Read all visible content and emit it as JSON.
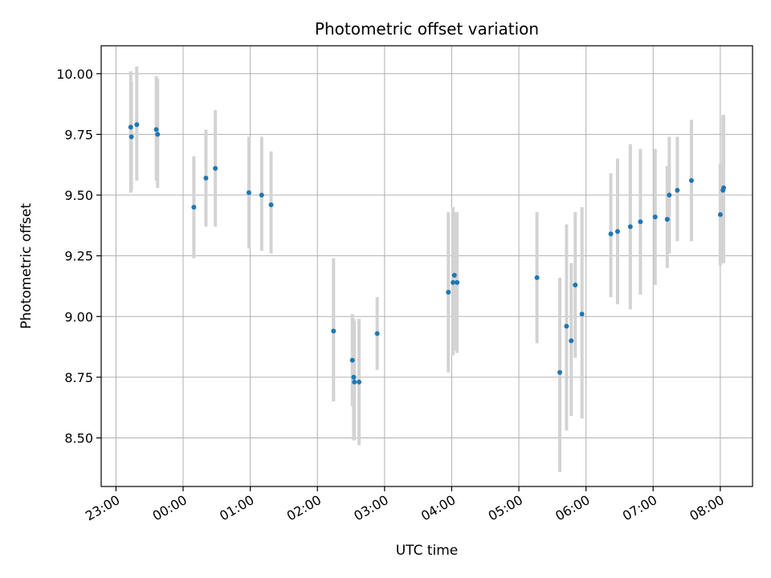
{
  "chart_data": {
    "type": "scatter",
    "title": "Photometric offset variation",
    "xlabel": "UTC time",
    "ylabel": "Photometric offset",
    "x_unit": "UTC time (hours; values past 24 are the next day)",
    "xlim": [
      22.78,
      32.48
    ],
    "ylim": [
      8.3,
      10.115
    ],
    "grid": true,
    "legend": "none",
    "x_ticks": [
      {
        "value": 23,
        "label": "23:00"
      },
      {
        "value": 24,
        "label": "00:00"
      },
      {
        "value": 25,
        "label": "01:00"
      },
      {
        "value": 26,
        "label": "02:00"
      },
      {
        "value": 27,
        "label": "03:00"
      },
      {
        "value": 28,
        "label": "04:00"
      },
      {
        "value": 29,
        "label": "05:00"
      },
      {
        "value": 30,
        "label": "06:00"
      },
      {
        "value": 31,
        "label": "07:00"
      },
      {
        "value": 32,
        "label": "08:00"
      }
    ],
    "y_ticks": [
      {
        "value": 8.5,
        "label": "8.50"
      },
      {
        "value": 8.75,
        "label": "8.75"
      },
      {
        "value": 9.0,
        "label": "9.00"
      },
      {
        "value": 9.25,
        "label": "9.25"
      },
      {
        "value": 9.5,
        "label": "9.50"
      },
      {
        "value": 9.75,
        "label": "9.75"
      },
      {
        "value": 10.0,
        "label": "10.00"
      }
    ],
    "colors": {
      "marker": "#1f77b4",
      "errorbar": "#d3d3d3",
      "grid": "#b0b0b0"
    },
    "points": [
      {
        "x": 23.22,
        "y": 9.78,
        "err_low": 9.51,
        "err_high": 10.01
      },
      {
        "x": 23.23,
        "y": 9.74,
        "err_low": 9.52,
        "err_high": 9.97
      },
      {
        "x": 23.31,
        "y": 9.79,
        "err_low": 9.56,
        "err_high": 10.03
      },
      {
        "x": 23.6,
        "y": 9.77,
        "err_low": 9.56,
        "err_high": 9.99
      },
      {
        "x": 23.62,
        "y": 9.75,
        "err_low": 9.53,
        "err_high": 9.98
      },
      {
        "x": 24.16,
        "y": 9.45,
        "err_low": 9.24,
        "err_high": 9.66
      },
      {
        "x": 24.34,
        "y": 9.57,
        "err_low": 9.37,
        "err_high": 9.77
      },
      {
        "x": 24.48,
        "y": 9.61,
        "err_low": 9.37,
        "err_high": 9.85
      },
      {
        "x": 24.98,
        "y": 9.51,
        "err_low": 9.28,
        "err_high": 9.74
      },
      {
        "x": 25.17,
        "y": 9.5,
        "err_low": 9.27,
        "err_high": 9.74
      },
      {
        "x": 25.31,
        "y": 9.46,
        "err_low": 9.26,
        "err_high": 9.68
      },
      {
        "x": 26.24,
        "y": 8.94,
        "err_low": 8.65,
        "err_high": 9.24
      },
      {
        "x": 26.52,
        "y": 8.82,
        "err_low": 8.63,
        "err_high": 9.01
      },
      {
        "x": 26.54,
        "y": 8.75,
        "err_low": 8.49,
        "err_high": 8.99
      },
      {
        "x": 26.55,
        "y": 8.73,
        "err_low": 8.49,
        "err_high": 8.98
      },
      {
        "x": 26.62,
        "y": 8.73,
        "err_low": 8.47,
        "err_high": 8.99
      },
      {
        "x": 26.89,
        "y": 8.93,
        "err_low": 8.78,
        "err_high": 9.08
      },
      {
        "x": 27.95,
        "y": 9.1,
        "err_low": 8.77,
        "err_high": 9.43
      },
      {
        "x": 28.02,
        "y": 9.14,
        "err_low": 8.84,
        "err_high": 9.45
      },
      {
        "x": 28.04,
        "y": 9.17,
        "err_low": 8.86,
        "err_high": 9.43
      },
      {
        "x": 28.08,
        "y": 9.14,
        "err_low": 8.85,
        "err_high": 9.43
      },
      {
        "x": 29.27,
        "y": 9.16,
        "err_low": 8.89,
        "err_high": 9.43
      },
      {
        "x": 29.61,
        "y": 8.77,
        "err_low": 8.36,
        "err_high": 9.16
      },
      {
        "x": 29.71,
        "y": 8.96,
        "err_low": 8.53,
        "err_high": 9.38
      },
      {
        "x": 29.78,
        "y": 8.9,
        "err_low": 8.59,
        "err_high": 9.22
      },
      {
        "x": 29.84,
        "y": 9.13,
        "err_low": 8.83,
        "err_high": 9.43
      },
      {
        "x": 29.94,
        "y": 9.01,
        "err_low": 8.58,
        "err_high": 9.45
      },
      {
        "x": 30.37,
        "y": 9.34,
        "err_low": 9.08,
        "err_high": 9.59
      },
      {
        "x": 30.47,
        "y": 9.35,
        "err_low": 9.05,
        "err_high": 9.65
      },
      {
        "x": 30.66,
        "y": 9.37,
        "err_low": 9.03,
        "err_high": 9.71
      },
      {
        "x": 30.81,
        "y": 9.39,
        "err_low": 9.09,
        "err_high": 9.69
      },
      {
        "x": 31.03,
        "y": 9.41,
        "err_low": 9.13,
        "err_high": 9.69
      },
      {
        "x": 31.21,
        "y": 9.4,
        "err_low": 9.2,
        "err_high": 9.62
      },
      {
        "x": 31.24,
        "y": 9.5,
        "err_low": 9.26,
        "err_high": 9.74
      },
      {
        "x": 31.36,
        "y": 9.52,
        "err_low": 9.31,
        "err_high": 9.74
      },
      {
        "x": 31.57,
        "y": 9.56,
        "err_low": 9.31,
        "err_high": 9.81
      },
      {
        "x": 32.0,
        "y": 9.42,
        "err_low": 9.21,
        "err_high": 9.63
      },
      {
        "x": 32.04,
        "y": 9.52,
        "err_low": 9.22,
        "err_high": 9.83
      },
      {
        "x": 32.05,
        "y": 9.53,
        "err_low": 9.22,
        "err_high": 9.83
      }
    ]
  }
}
